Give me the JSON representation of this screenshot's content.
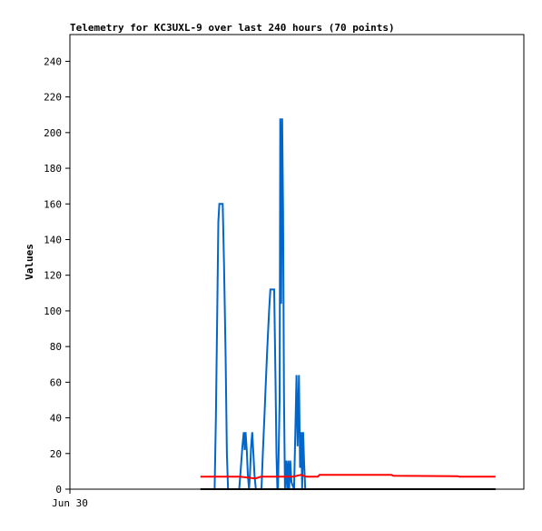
{
  "chart_data": {
    "type": "line",
    "title": "Telemetry for KC3UXL-9 over last 240 hours (70 points)",
    "xlabel": "",
    "ylabel": "Values",
    "ylim": [
      0,
      255
    ],
    "yticks": [
      0,
      20,
      40,
      60,
      80,
      100,
      120,
      140,
      160,
      180,
      200,
      220,
      240
    ],
    "xlim": [
      0,
      240
    ],
    "xticks": [
      {
        "x": 0,
        "label": "Jun 30"
      }
    ],
    "grid": false,
    "legend": "none",
    "series": [
      {
        "color": "#0066cc",
        "points": [
          [
            74.5,
            0
          ],
          [
            75.5,
            0
          ],
          [
            76.5,
            0
          ],
          [
            77.2,
            40
          ],
          [
            77.9,
            100
          ],
          [
            78.5,
            150
          ],
          [
            79,
            160
          ],
          [
            80.8,
            160
          ],
          [
            81.5,
            125
          ],
          [
            82.3,
            75
          ],
          [
            83,
            20
          ],
          [
            83.6,
            0
          ],
          [
            89.5,
            0
          ],
          [
            90.4,
            12
          ],
          [
            91.2,
            24
          ],
          [
            91.9,
            32
          ],
          [
            92.4,
            22
          ],
          [
            92.9,
            32
          ],
          [
            93.5,
            22
          ],
          [
            94.1,
            8
          ],
          [
            94.7,
            0
          ],
          [
            95.2,
            8
          ],
          [
            95.8,
            24
          ],
          [
            96.4,
            32
          ],
          [
            97,
            20
          ],
          [
            97.6,
            8
          ],
          [
            98.3,
            0
          ],
          [
            101.3,
            0
          ],
          [
            102,
            20
          ],
          [
            102.8,
            40
          ],
          [
            103.6,
            60
          ],
          [
            104.4,
            80
          ],
          [
            105.3,
            100
          ],
          [
            106,
            112
          ],
          [
            108,
            112
          ],
          [
            108.7,
            60
          ],
          [
            109.2,
            20
          ],
          [
            109.7,
            0
          ],
          [
            110,
            0
          ],
          [
            110.9,
            50
          ],
          [
            111.2,
            208
          ],
          [
            111.7,
            104
          ],
          [
            112.2,
            208
          ],
          [
            112.7,
            156
          ],
          [
            113.2,
            52
          ],
          [
            113.7,
            0
          ],
          [
            114.3,
            16
          ],
          [
            114.9,
            0
          ],
          [
            115.4,
            16
          ],
          [
            115.9,
            0
          ],
          [
            116.5,
            16
          ],
          [
            117.1,
            4
          ],
          [
            118.5,
            0
          ],
          [
            119.2,
            32
          ],
          [
            119.8,
            64
          ],
          [
            120.4,
            24
          ],
          [
            121.1,
            64
          ],
          [
            121.7,
            12
          ],
          [
            122.3,
            32
          ],
          [
            122.8,
            0
          ],
          [
            123.3,
            32
          ],
          [
            123.8,
            16
          ],
          [
            124.4,
            0
          ]
        ]
      },
      {
        "color": "#ff0000",
        "points": [
          [
            69,
            7
          ],
          [
            90,
            7
          ],
          [
            98,
            6
          ],
          [
            101,
            7
          ],
          [
            118,
            7
          ],
          [
            122,
            8
          ],
          [
            125,
            7
          ],
          [
            131,
            7
          ],
          [
            132,
            8
          ],
          [
            170,
            8
          ],
          [
            171,
            7.5
          ],
          [
            205,
            7.3
          ],
          [
            206,
            7
          ],
          [
            225,
            7
          ]
        ]
      },
      {
        "color": "#000000",
        "points": [
          [
            69,
            0
          ],
          [
            225,
            0
          ]
        ]
      }
    ]
  }
}
